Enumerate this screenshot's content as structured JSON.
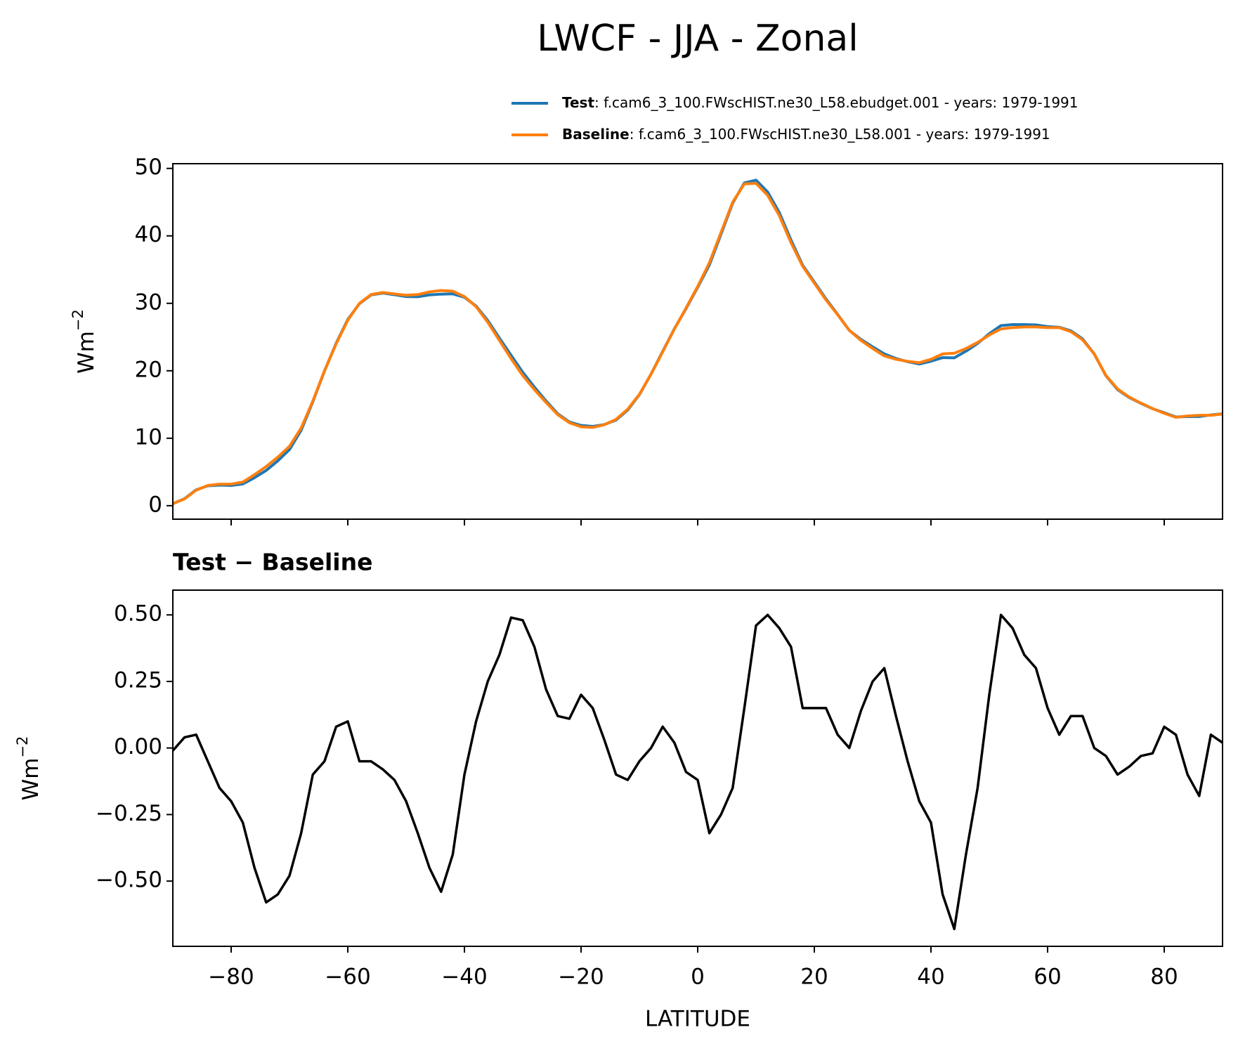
{
  "title": "LWCF - JJA - Zonal",
  "chart_data": [
    {
      "type": "line",
      "ylabel": {
        "base": "Wm",
        "sup": "−2"
      },
      "xlim": [
        -90,
        90
      ],
      "xticks": [
        -80,
        -60,
        -40,
        -20,
        0,
        20,
        40,
        60,
        80
      ],
      "ylim": [
        -2,
        50.7
      ],
      "yticks": [
        0,
        10,
        20,
        30,
        40,
        50
      ],
      "x": [
        -90,
        -88,
        -86,
        -84,
        -82,
        -80,
        -78,
        -76,
        -74,
        -72,
        -70,
        -68,
        -66,
        -64,
        -62,
        -60,
        -58,
        -56,
        -54,
        -52,
        -50,
        -48,
        -46,
        -44,
        -42,
        -40,
        -38,
        -36,
        -34,
        -32,
        -30,
        -28,
        -26,
        -24,
        -22,
        -20,
        -18,
        -16,
        -14,
        -12,
        -10,
        -8,
        -6,
        -4,
        -2,
        0,
        2,
        4,
        6,
        8,
        10,
        12,
        14,
        16,
        18,
        20,
        22,
        24,
        26,
        28,
        30,
        32,
        34,
        36,
        38,
        40,
        42,
        44,
        46,
        48,
        50,
        52,
        54,
        56,
        58,
        60,
        62,
        64,
        66,
        68,
        70,
        72,
        74,
        76,
        78,
        80,
        82,
        84,
        86,
        88,
        90
      ],
      "series": [
        {
          "name": "Test",
          "description": ": f.cam6_3_100.FWscHIST.ne30_L58.ebudget.001 - years: 1979-1991",
          "color": "#1f77b4",
          "values": [
            0.29,
            1.04,
            2.35,
            2.95,
            3.05,
            3.0,
            3.22,
            4.15,
            5.22,
            6.65,
            8.32,
            11.18,
            15.4,
            19.95,
            24.08,
            27.6,
            29.95,
            31.25,
            31.52,
            31.28,
            31.0,
            30.98,
            31.25,
            31.36,
            31.4,
            30.9,
            29.6,
            27.45,
            24.85,
            22.29,
            19.78,
            17.58,
            15.52,
            13.62,
            12.41,
            11.9,
            11.75,
            12.03,
            12.7,
            14.18,
            16.45,
            19.5,
            22.88,
            26.22,
            29.21,
            32.38,
            35.68,
            40.25,
            44.85,
            47.85,
            48.26,
            46.5,
            43.45,
            39.38,
            35.65,
            33.15,
            30.65,
            28.35,
            26.0,
            24.64,
            23.55,
            22.5,
            21.82,
            21.35,
            21.0,
            21.42,
            21.95,
            21.92,
            22.9,
            24.05,
            25.5,
            26.7,
            26.85,
            26.85,
            26.8,
            26.55,
            26.45,
            25.92,
            24.72,
            22.5,
            19.27,
            17.2,
            16.03,
            15.17,
            14.38,
            13.78,
            13.15,
            13.2,
            13.22,
            13.45,
            13.62
          ]
        },
        {
          "name": "Baseline",
          "description": ": f.cam6_3_100.FWscHIST.ne30_L58.001 - years: 1979-1991",
          "color": "#ff7f0e",
          "values": [
            0.3,
            1.0,
            2.3,
            3.0,
            3.2,
            3.2,
            3.5,
            4.6,
            5.8,
            7.2,
            8.8,
            11.5,
            15.5,
            20,
            24,
            27.5,
            30,
            31.3,
            31.6,
            31.4,
            31.2,
            31.3,
            31.7,
            31.9,
            31.8,
            31.0,
            29.5,
            27.2,
            24.5,
            21.8,
            19.3,
            17.2,
            15.3,
            13.5,
            12.3,
            11.7,
            11.6,
            12.0,
            12.8,
            14.3,
            16.5,
            19.5,
            22.8,
            26.2,
            29.3,
            32.5,
            36,
            40.5,
            45,
            47.7,
            47.8,
            46,
            43,
            39,
            35.5,
            33,
            30.5,
            28.3,
            26,
            24.5,
            23.3,
            22.2,
            21.7,
            21.4,
            21.2,
            21.7,
            22.5,
            22.6,
            23.3,
            24.2,
            25.3,
            26.2,
            26.4,
            26.5,
            26.5,
            26.4,
            26.4,
            25.8,
            24.6,
            22.5,
            19.3,
            17.3,
            16.1,
            15.2,
            14.4,
            13.7,
            13.1,
            13.3,
            13.4,
            13.4,
            13.6
          ]
        }
      ]
    },
    {
      "type": "line",
      "title": "Test − Baseline",
      "xlabel": "LATITUDE",
      "ylabel": {
        "base": "Wm",
        "sup": "−2"
      },
      "xlim": [
        -90,
        90
      ],
      "xticks": [
        {
          "value": -80,
          "label": "−80"
        },
        {
          "value": -60,
          "label": "−60"
        },
        {
          "value": -40,
          "label": "−40"
        },
        {
          "value": -20,
          "label": "−20"
        },
        0,
        20,
        40,
        60,
        80
      ],
      "ylim": [
        -0.745,
        0.593
      ],
      "yticks": [
        {
          "value": -0.5,
          "label": "−0.50"
        },
        {
          "value": -0.25,
          "label": "−0.25"
        },
        {
          "value": 0,
          "label": "0.00"
        },
        {
          "value": 0.25,
          "label": "0.25"
        },
        {
          "value": 0.5,
          "label": "0.50"
        }
      ],
      "x": [
        -90,
        -88,
        -86,
        -84,
        -82,
        -80,
        -78,
        -76,
        -74,
        -72,
        -70,
        -68,
        -66,
        -64,
        -62,
        -60,
        -58,
        -56,
        -54,
        -52,
        -50,
        -48,
        -46,
        -44,
        -42,
        -40,
        -38,
        -36,
        -34,
        -32,
        -30,
        -28,
        -26,
        -24,
        -22,
        -20,
        -18,
        -16,
        -14,
        -12,
        -10,
        -8,
        -6,
        -4,
        -2,
        0,
        2,
        4,
        6,
        8,
        10,
        12,
        14,
        16,
        18,
        20,
        22,
        24,
        26,
        28,
        30,
        32,
        34,
        36,
        38,
        40,
        42,
        44,
        46,
        48,
        50,
        52,
        54,
        56,
        58,
        60,
        62,
        64,
        66,
        68,
        70,
        72,
        74,
        76,
        78,
        80,
        82,
        84,
        86,
        88,
        90
      ],
      "series": [
        {
          "color": "#000000",
          "values": [
            -0.01,
            0.04,
            0.05,
            -0.05,
            -0.15,
            -0.2,
            -0.28,
            -0.45,
            -0.58,
            -0.55,
            -0.48,
            -0.32,
            -0.1,
            -0.05,
            0.08,
            0.1,
            -0.05,
            -0.05,
            -0.08,
            -0.12,
            -0.2,
            -0.32,
            -0.45,
            -0.54,
            -0.4,
            -0.1,
            0.1,
            0.25,
            0.35,
            0.49,
            0.48,
            0.38,
            0.22,
            0.12,
            0.11,
            0.2,
            0.15,
            0.03,
            -0.1,
            -0.12,
            -0.05,
            0.0,
            0.08,
            0.02,
            -0.09,
            -0.12,
            -0.32,
            -0.25,
            -0.15,
            0.15,
            0.46,
            0.5,
            0.45,
            0.38,
            0.15,
            0.15,
            0.15,
            0.05,
            0.0,
            0.14,
            0.25,
            0.3,
            0.12,
            -0.05,
            -0.2,
            -0.28,
            -0.55,
            -0.68,
            -0.4,
            -0.15,
            0.2,
            0.5,
            0.45,
            0.35,
            0.3,
            0.15,
            0.05,
            0.12,
            0.12,
            0.0,
            -0.03,
            -0.1,
            -0.07,
            -0.03,
            -0.02,
            0.08,
            0.05,
            -0.1,
            -0.18,
            0.05,
            0.02
          ]
        }
      ]
    }
  ]
}
